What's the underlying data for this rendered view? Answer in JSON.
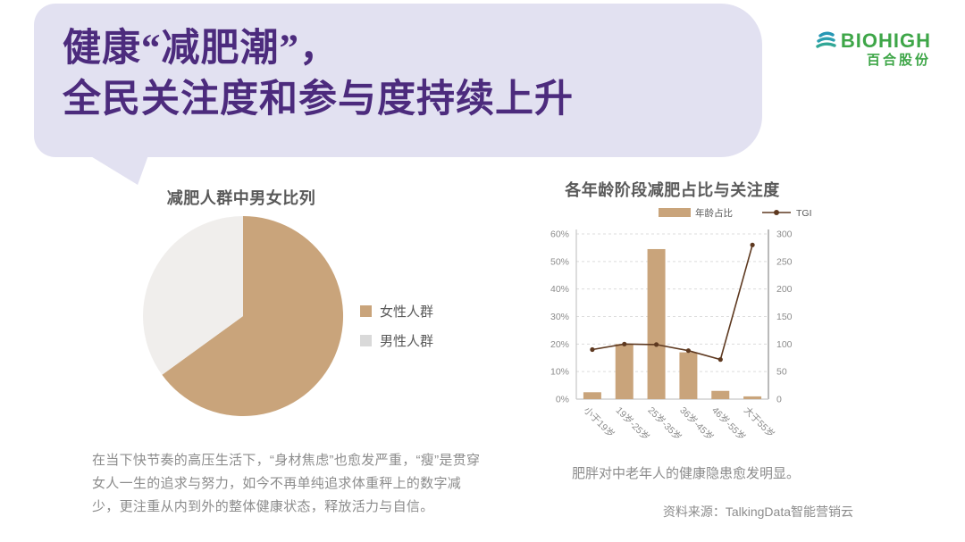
{
  "header": {
    "title_line1": "健康“减肥潮”，",
    "title_line2": "全民关注度和参与度持续上升"
  },
  "logo": {
    "brand": "BIOHIGH",
    "subtitle": "百合股份"
  },
  "left_panel": {
    "paragraph": "在当下快节奏的高压生活下，“身材焦虑”也愈发严重，“瘦”是贯穿女人一生的追求与努力，如今不再单纯追求体重秤上的数字减少，更注重从内到外的整体健康状态，释放活力与自信。"
  },
  "right_panel": {
    "note": "肥胖对中老年人的健康隐患愈发明显。",
    "source": "资料来源：TalkingData智能营销云"
  },
  "colors": {
    "bubble_lavender": "#E2E1F1",
    "title_purple": "#4C2B7D",
    "brand_green": "#3EA648",
    "brand_teal": "#2596B4",
    "tan": "#C9A47B",
    "line_brown": "#5E3920",
    "text_gray": "#8C8C8C",
    "heading_gray": "#595959"
  },
  "chart_data": [
    {
      "type": "pie",
      "title": "减肥人群中男女比列",
      "labels": [
        "女性人群",
        "男性人群"
      ],
      "values": [
        65,
        35
      ],
      "slice_colors": [
        "#C9A47B",
        "#F0EEEC"
      ],
      "legend_colors": [
        "#C9A47B",
        "#D9D9D9"
      ],
      "legend_position": "right",
      "start_angle_deg": -90,
      "direction": "clockwise"
    },
    {
      "type": "bar",
      "subtype": "combo-bar-line",
      "title": "各年龄阶段减肥占比与关注度",
      "categories": [
        "小于19岁",
        "19岁-25岁",
        "25岁-35岁",
        "36岁-45岁",
        "46岁-55岁",
        "大于55岁"
      ],
      "series": [
        {
          "name": "年龄占比",
          "type": "bar",
          "axis": "left",
          "values": [
            2.5,
            20,
            54.5,
            17,
            3,
            1
          ]
        },
        {
          "name": "TGI",
          "type": "line",
          "axis": "right",
          "values": [
            90,
            100,
            99,
            88,
            72,
            280
          ]
        }
      ],
      "left_axis": {
        "label": "",
        "min": 0,
        "max": 60,
        "ticks": [
          "0%",
          "10%",
          "20%",
          "30%",
          "40%",
          "50%",
          "60%"
        ]
      },
      "right_axis": {
        "label": "",
        "min": 0,
        "max": 300,
        "ticks": [
          "0",
          "50",
          "100",
          "150",
          "200",
          "250",
          "300"
        ]
      },
      "bar_color": "#C9A47B",
      "line_color": "#5E3920",
      "grid": "dashed-horizontal",
      "legend_position": "top"
    }
  ]
}
